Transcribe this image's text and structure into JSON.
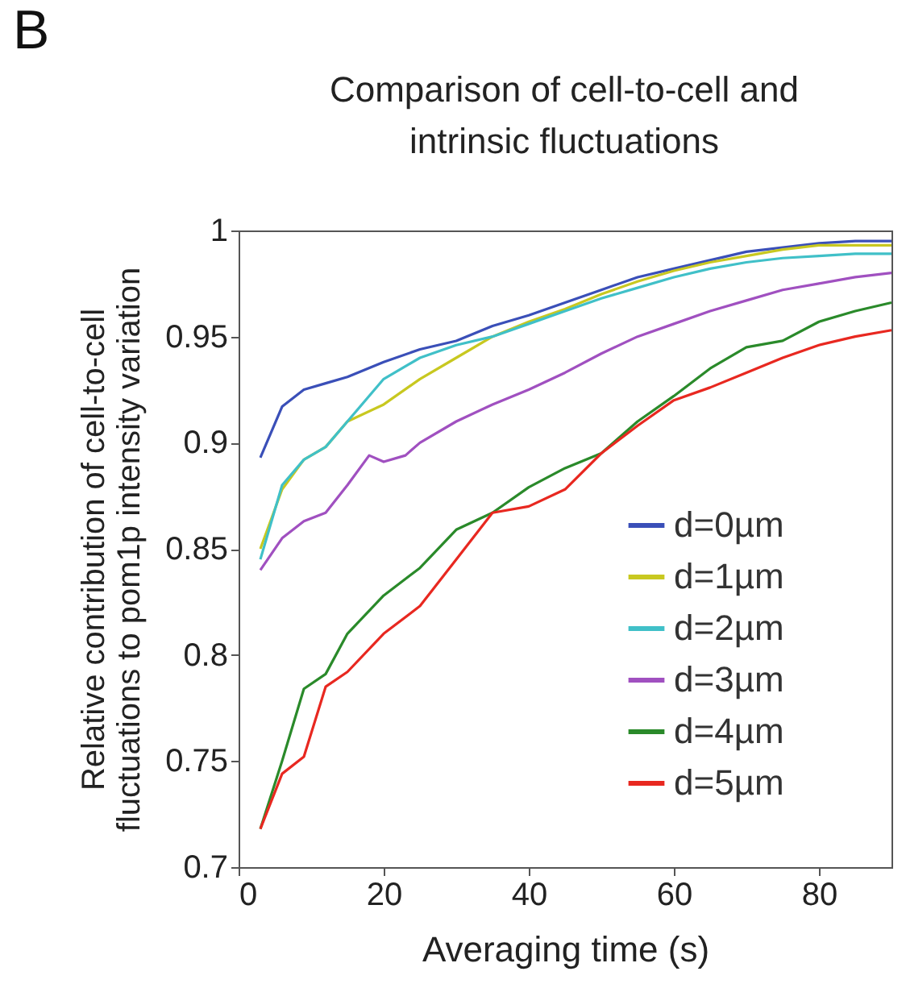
{
  "chart_data": {
    "type": "line",
    "title": [
      "Comparison of cell-to-cell and",
      "intrinsic fluctuations"
    ],
    "xlabel": "Averaging time (s)",
    "ylabel": [
      "Relative contribution of cell-to-cell",
      "fluctuations to pom1p intensity variation"
    ],
    "annotations": [
      "B"
    ],
    "x": [
      3,
      6,
      9,
      12,
      15,
      20,
      25,
      30,
      35,
      40,
      45,
      50,
      55,
      60,
      65,
      70,
      75,
      80,
      85,
      90
    ],
    "series": [
      {
        "name": "d=0µm",
        "color": "#3a4fb8",
        "values": [
          0.893,
          0.917,
          0.925,
          0.928,
          0.931,
          0.938,
          0.944,
          0.948,
          0.955,
          0.96,
          0.966,
          0.972,
          0.978,
          0.982,
          0.986,
          0.99,
          0.992,
          0.994,
          0.995,
          0.995
        ]
      },
      {
        "name": "d=1µm",
        "color": "#c8c820",
        "values": [
          0.85,
          0.878,
          0.892,
          0.898,
          0.91,
          0.918,
          0.93,
          0.94,
          0.95,
          0.957,
          0.963,
          0.97,
          0.976,
          0.981,
          0.985,
          0.988,
          0.991,
          0.993,
          0.993,
          0.993
        ]
      },
      {
        "name": "d=2µm",
        "color": "#40c0c8",
        "values": [
          0.845,
          0.88,
          0.892,
          0.898,
          0.91,
          0.93,
          0.94,
          0.946,
          0.95,
          0.956,
          0.962,
          0.968,
          0.973,
          0.978,
          0.982,
          0.985,
          0.987,
          0.988,
          0.989,
          0.989
        ]
      },
      {
        "name": "d=3µm",
        "color": "#a050c0",
        "x": [
          3,
          6,
          9,
          12,
          15,
          18,
          20,
          23,
          25,
          30,
          35,
          40,
          45,
          50,
          55,
          60,
          65,
          70,
          75,
          80,
          85,
          90
        ],
        "values": [
          0.84,
          0.855,
          0.863,
          0.867,
          0.88,
          0.894,
          0.891,
          0.894,
          0.9,
          0.91,
          0.918,
          0.925,
          0.933,
          0.942,
          0.95,
          0.956,
          0.962,
          0.967,
          0.972,
          0.975,
          0.978,
          0.98
        ]
      },
      {
        "name": "d=4µm",
        "color": "#2a8a2a",
        "values": [
          0.718,
          0.75,
          0.784,
          0.791,
          0.81,
          0.828,
          0.841,
          0.859,
          0.867,
          0.879,
          0.888,
          0.895,
          0.91,
          0.922,
          0.935,
          0.945,
          0.948,
          0.957,
          0.962,
          0.966
        ]
      },
      {
        "name": "d=5µm",
        "color": "#e82820",
        "values": [
          0.718,
          0.744,
          0.752,
          0.785,
          0.792,
          0.81,
          0.823,
          0.845,
          0.867,
          0.87,
          0.878,
          0.895,
          0.908,
          0.92,
          0.926,
          0.933,
          0.94,
          0.946,
          0.95,
          0.953
        ]
      }
    ],
    "xlim": [
      0,
      90
    ],
    "xticks": [
      0,
      20,
      40,
      60,
      80
    ],
    "ylim": [
      0.7,
      1
    ],
    "yticks": [
      0.7,
      0.75,
      0.8,
      0.85,
      0.9,
      0.95,
      1
    ],
    "grid": false,
    "legend": "bottom right",
    "line_style": "solid"
  }
}
